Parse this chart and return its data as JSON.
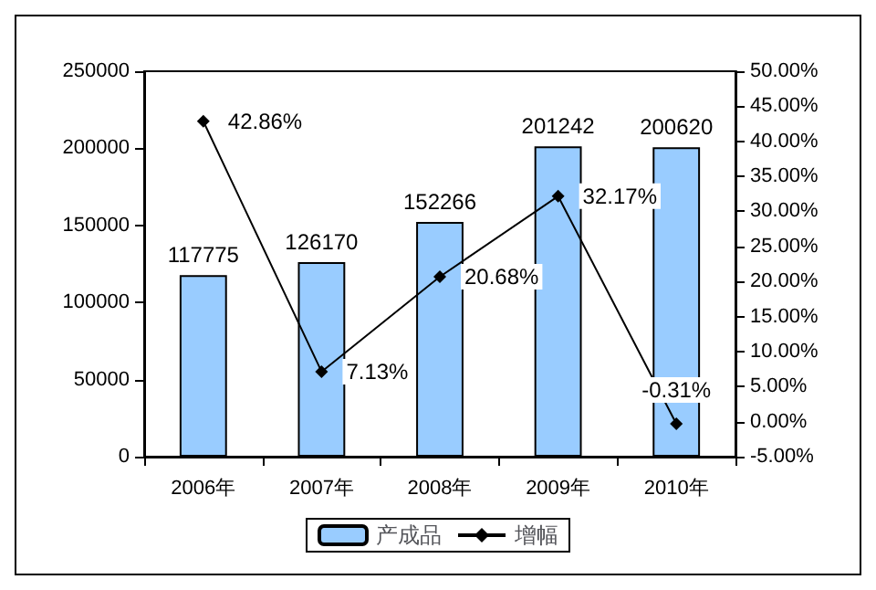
{
  "chart_data": {
    "type": "bar",
    "categories": [
      "2006年",
      "2007年",
      "2008年",
      "2009年",
      "2010年"
    ],
    "series": [
      {
        "name": "产成品",
        "color": "#99ccff",
        "values": [
          117775,
          126170,
          152266,
          201242,
          200620
        ],
        "value_labels": [
          "117775",
          "126170",
          "152266",
          "201242",
          "200620"
        ]
      },
      {
        "name": "增幅",
        "type": "line",
        "axis": "y2",
        "color": "#000000",
        "marker": "diamond",
        "values": [
          42.86,
          7.13,
          20.68,
          32.17,
          -0.31
        ],
        "value_labels": [
          "42.86%",
          "7.13%",
          "20.68%",
          "32.17%",
          "-0.31%"
        ]
      }
    ],
    "ylim": [
      0,
      250000
    ],
    "yticks": [
      0,
      50000,
      100000,
      150000,
      200000,
      250000
    ],
    "y2lim": [
      -5,
      50
    ],
    "y2ticks": [
      {
        "value": -5,
        "label": "-5.00%"
      },
      {
        "value": 0,
        "label": "0.00%"
      },
      {
        "value": 5,
        "label": "5.00%"
      },
      {
        "value": 10,
        "label": "10.00%"
      },
      {
        "value": 15,
        "label": "15.00%"
      },
      {
        "value": 20,
        "label": "20.00%"
      },
      {
        "value": 25,
        "label": "25.00%"
      },
      {
        "value": 30,
        "label": "30.00%"
      },
      {
        "value": 35,
        "label": "35.00%"
      },
      {
        "value": 40,
        "label": "40.00%"
      },
      {
        "value": 45,
        "label": "45.00%"
      },
      {
        "value": 50,
        "label": "50.00%"
      }
    ],
    "grid": false,
    "legend": "bottom"
  }
}
